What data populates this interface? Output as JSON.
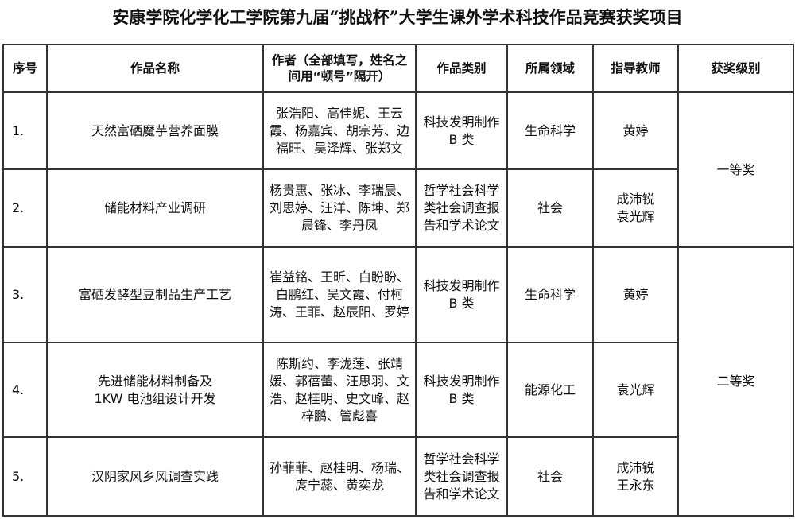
{
  "title": "安康学院化学化工学院第九届“挑战杯”大学生课外学术科技作品竞赛获奖项目",
  "headers": [
    "序号",
    "作品名称",
    "作者（全部填写，姓名之间用“顿号”隔开）",
    "作品类别",
    "所属领域",
    "指导教师",
    "获奖级别"
  ],
  "rows": [
    {
      "no": "1.",
      "name": "天然富硒魔芋营养面膜",
      "authors": "张浩阳、高佳妮、王云霞、杨嘉宾、胡宗芳、边福旺、吴泽辉、张郑文",
      "category": "科技发明制作 B 类",
      "field": "生命科学",
      "teacher": "黄婷"
    },
    {
      "no": "2.",
      "name": "储能材料产业调研",
      "authors": "杨贵惠、张冰、李瑞晨、刘思婷、汪洋、陈坤、郑晨锋、李丹凤",
      "category": "哲学社会科学类社会调查报告和学术论文",
      "field": "社会",
      "teacher": "成沛锐 袁光辉"
    },
    {
      "no": "3.",
      "name": "富硒发酵型豆制品生产工艺",
      "authors": "崔益铭、王昕、白盼盼、白鹏红、吴文霞、付柯涛、王菲、赵辰阳、罗婷",
      "category": "科技发明制作 B 类",
      "field": "生命科学",
      "teacher": "黄婷"
    },
    {
      "no": "4.",
      "name": "先进储能材料制备及 1KW 电池组设计开发",
      "authors": "陈斯约、李泷莲、张靖媛、郭蓓蕾、汪思羽、文浩、赵桂明、史文峰、赵梓鹏、管彪喜",
      "category": "科技发明制作 B 类",
      "field": "能源化工",
      "teacher": "袁光辉"
    },
    {
      "no": "5.",
      "name": "汉阴家风乡风调查实践",
      "authors": "孙菲菲、赵桂明、杨瑞、庹宁蕊、黄奕龙",
      "category": "哲学社会科学类社会调查报告和学术论文",
      "field": "社会",
      "teacher": "成沛锐 王永东"
    }
  ],
  "awards": [
    "一等奖",
    "二等奖"
  ]
}
